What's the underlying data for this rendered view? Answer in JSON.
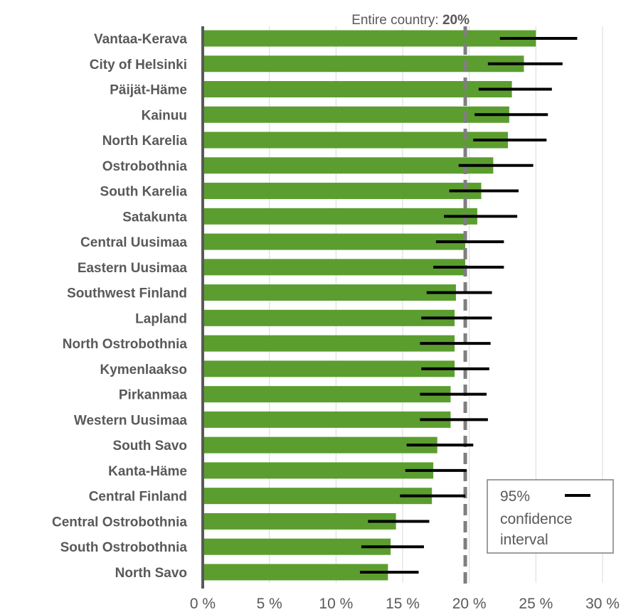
{
  "chart_data": {
    "type": "bar",
    "orientation": "horizontal",
    "categories": [
      "Vantaa-Kerava",
      "City of Helsinki",
      "Päijät-Häme",
      "Kainuu",
      "North Karelia",
      "Ostrobothnia",
      "South Karelia",
      "Satakunta",
      "Central Uusimaa",
      "Eastern Uusimaa",
      "Southwest Finland",
      "Lapland",
      "North Ostrobothnia",
      "Kymenlaakso",
      "Pirkanmaa",
      "Western Uusimaa",
      "South Savo",
      "Kanta-Häme",
      "Central Finland",
      "Central Ostrobothnia",
      "South Ostrobothnia",
      "North Savo"
    ],
    "values": [
      25.0,
      24.1,
      23.2,
      23.0,
      22.9,
      21.8,
      20.9,
      20.6,
      19.7,
      19.7,
      19.0,
      18.9,
      18.9,
      18.9,
      18.6,
      18.6,
      17.6,
      17.3,
      17.2,
      14.5,
      14.1,
      13.9
    ],
    "ci_low": [
      22.3,
      21.4,
      20.7,
      20.4,
      20.3,
      19.2,
      18.5,
      18.1,
      17.5,
      17.3,
      16.8,
      16.4,
      16.3,
      16.4,
      16.3,
      16.3,
      15.3,
      15.2,
      14.8,
      12.4,
      11.9,
      11.8
    ],
    "ci_high": [
      28.1,
      27.0,
      26.2,
      25.9,
      25.8,
      24.8,
      23.7,
      23.6,
      22.6,
      22.6,
      21.7,
      21.7,
      21.6,
      21.5,
      21.3,
      21.4,
      20.3,
      19.8,
      19.7,
      17.0,
      16.6,
      16.2
    ],
    "xlim": [
      0,
      30
    ],
    "xticks": [
      0,
      5,
      10,
      15,
      20,
      25,
      30
    ],
    "xtick_labels": [
      "0 %",
      "5 %",
      "10 %",
      "15 %",
      "20 %",
      "25 %",
      "30 %"
    ],
    "grid": true,
    "reference_line": {
      "value": 19.7,
      "label": "Entire country: ",
      "value_label": "20%"
    },
    "legend": {
      "label_lines": [
        "95%",
        "confidence",
        "interval"
      ],
      "position": "bottom-right"
    },
    "colors": {
      "bar": "#5B9E2F",
      "ci": "#000000",
      "reference": "#7F7F7F",
      "axis": "#595959",
      "grid": "#D9D9D9",
      "legend_border": "#7F7F7F"
    }
  }
}
